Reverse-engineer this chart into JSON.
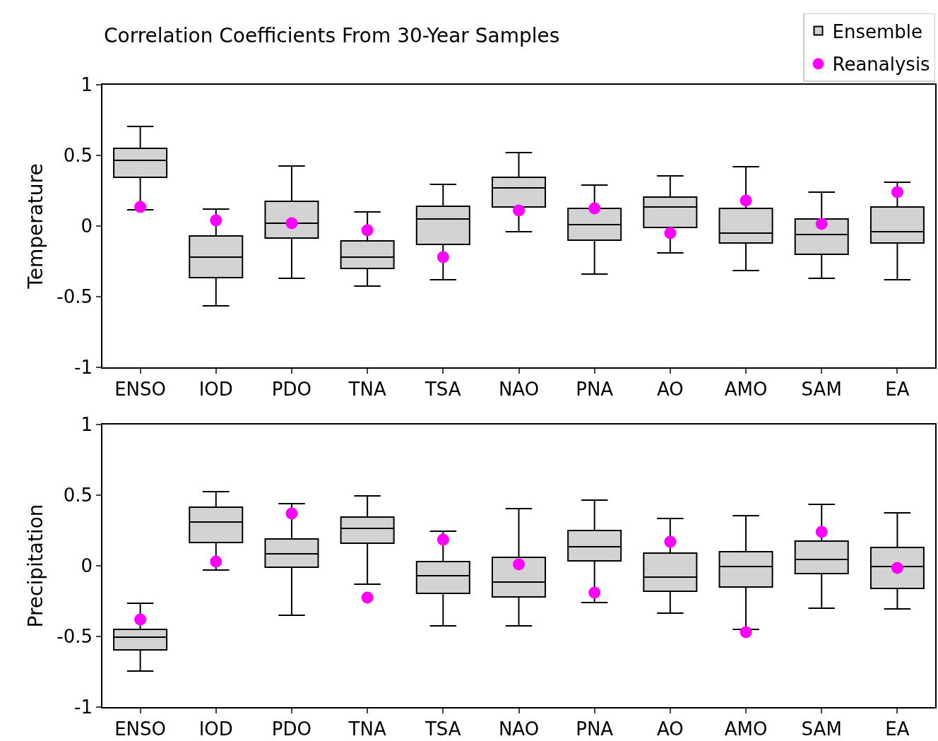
{
  "chart_data": [
    {
      "type": "box",
      "title": "Correlation Coefficients From 30-Year Samples",
      "ylabel": "Temperature",
      "categories": [
        "ENSO",
        "IOD",
        "PDO",
        "TNA",
        "TSA",
        "NAO",
        "PNA",
        "AO",
        "AMO",
        "SAM",
        "EA"
      ],
      "ylim": [
        -1,
        1
      ],
      "yticks": [
        -1,
        -0.5,
        0,
        0.5,
        1
      ],
      "legend": "top right",
      "series": [
        {
          "name": "Ensemble",
          "color": "#d3d3d3",
          "boxes": [
            {
              "low": 0.115,
              "q1": 0.345,
              "median": 0.465,
              "q3": 0.55,
              "high": 0.705
            },
            {
              "low": -0.565,
              "q1": -0.365,
              "median": -0.22,
              "q3": -0.07,
              "high": 0.12
            },
            {
              "low": -0.37,
              "q1": -0.085,
              "median": 0.02,
              "q3": 0.175,
              "high": 0.425
            },
            {
              "low": -0.425,
              "q1": -0.3,
              "median": -0.22,
              "q3": -0.105,
              "high": 0.1
            },
            {
              "low": -0.38,
              "q1": -0.13,
              "median": 0.05,
              "q3": 0.14,
              "high": 0.295
            },
            {
              "low": -0.04,
              "q1": 0.135,
              "median": 0.27,
              "q3": 0.345,
              "high": 0.52
            },
            {
              "low": -0.34,
              "q1": -0.1,
              "median": 0.01,
              "q3": 0.125,
              "high": 0.29
            },
            {
              "low": -0.19,
              "q1": -0.01,
              "median": 0.135,
              "q3": 0.205,
              "high": 0.355
            },
            {
              "low": -0.315,
              "q1": -0.12,
              "median": -0.05,
              "q3": 0.125,
              "high": 0.42
            },
            {
              "low": -0.37,
              "q1": -0.2,
              "median": -0.06,
              "q3": 0.05,
              "high": 0.24
            },
            {
              "low": -0.38,
              "q1": -0.12,
              "median": -0.04,
              "q3": 0.135,
              "high": 0.31
            }
          ]
        },
        {
          "name": "Reanalysis",
          "type": "scatter",
          "color": "#ff00ff",
          "marker": "circle",
          "x": [
            "ENSO",
            "IOD",
            "PDO",
            "TNA",
            "TSA",
            "NAO",
            "PNA",
            "AO",
            "AMO",
            "SAM",
            "EA"
          ],
          "values": [
            0.135,
            0.04,
            0.02,
            -0.03,
            -0.22,
            0.11,
            0.125,
            -0.05,
            0.18,
            0.015,
            0.24
          ]
        }
      ]
    },
    {
      "type": "box",
      "ylabel": "Precipitation",
      "categories": [
        "ENSO",
        "IOD",
        "PDO",
        "TNA",
        "TSA",
        "NAO",
        "PNA",
        "AO",
        "AMO",
        "SAM",
        "EA"
      ],
      "ylim": [
        -1,
        1
      ],
      "yticks": [
        -1,
        -0.5,
        0,
        0.5,
        1
      ],
      "series": [
        {
          "color": "#d3d3d3",
          "boxes": [
            {
              "low": -0.745,
              "q1": -0.595,
              "median": -0.505,
              "q3": -0.45,
              "high": -0.265
            },
            {
              "low": -0.03,
              "q1": 0.165,
              "median": 0.31,
              "q3": 0.415,
              "high": 0.525
            },
            {
              "low": -0.35,
              "q1": -0.01,
              "median": 0.085,
              "q3": 0.19,
              "high": 0.44
            },
            {
              "low": -0.13,
              "q1": 0.16,
              "median": 0.265,
              "q3": 0.345,
              "high": 0.495
            },
            {
              "low": -0.425,
              "q1": -0.195,
              "median": -0.07,
              "q3": 0.03,
              "high": 0.245
            },
            {
              "low": -0.425,
              "q1": -0.22,
              "median": -0.115,
              "q3": 0.06,
              "high": 0.405
            },
            {
              "low": -0.26,
              "q1": 0.035,
              "median": 0.135,
              "q3": 0.25,
              "high": 0.465
            },
            {
              "low": -0.335,
              "q1": -0.18,
              "median": -0.08,
              "q3": 0.09,
              "high": 0.335
            },
            {
              "low": -0.45,
              "q1": -0.15,
              "median": -0.005,
              "q3": 0.1,
              "high": 0.355
            },
            {
              "low": -0.3,
              "q1": -0.055,
              "median": 0.045,
              "q3": 0.175,
              "high": 0.435
            },
            {
              "low": -0.305,
              "q1": -0.16,
              "median": -0.005,
              "q3": 0.13,
              "high": 0.375
            }
          ]
        },
        {
          "type": "scatter",
          "color": "#ff00ff",
          "marker": "circle",
          "x": [
            "ENSO",
            "IOD",
            "PDO",
            "TNA",
            "TSA",
            "NAO",
            "PNA",
            "AO",
            "AMO",
            "SAM",
            "EA"
          ],
          "values": [
            -0.38,
            0.03,
            0.37,
            -0.225,
            0.185,
            0.01,
            -0.19,
            0.17,
            -0.47,
            0.24,
            -0.015
          ]
        }
      ]
    }
  ]
}
